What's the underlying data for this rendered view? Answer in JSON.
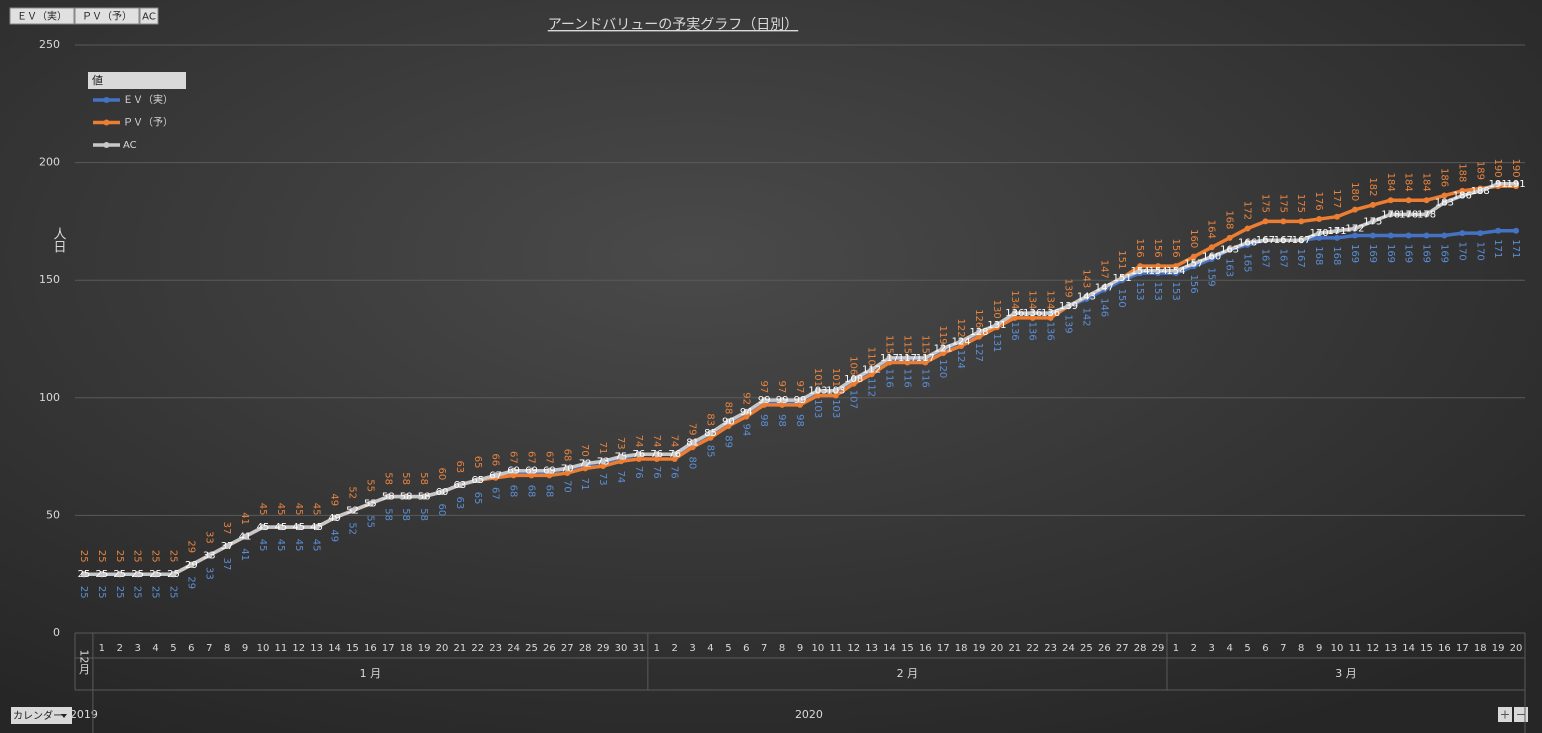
{
  "chart_data": {
    "type": "line",
    "title": "アーンドバリューの予実グラフ（日別）",
    "y_label": "人日",
    "legend_title": "値",
    "legend_position": "top-left",
    "filter_button": "カレンダー",
    "categories": [
      null,
      "1",
      "2",
      "3",
      "4",
      "5",
      "6",
      "7",
      "8",
      "9",
      "10",
      "11",
      "12",
      "13",
      "14",
      "15",
      "16",
      "17",
      "18",
      "19",
      "20",
      "21",
      "22",
      "23",
      "24",
      "25",
      "26",
      "27",
      "28",
      "29",
      "30",
      "31",
      "1",
      "2",
      "3",
      "4",
      "5",
      "6",
      "7",
      "8",
      "9",
      "10",
      "11",
      "12",
      "13",
      "14",
      "15",
      "16",
      "17",
      "18",
      "19",
      "20",
      "21",
      "22",
      "23",
      "24",
      "25",
      "26",
      "27",
      "28",
      "29",
      "1",
      "2",
      "3",
      "4",
      "5",
      "6",
      "7",
      "8",
      "9",
      "10",
      "11",
      "12",
      "13",
      "14",
      "15",
      "16",
      "17",
      "18",
      "19",
      "20"
    ],
    "months": [
      "12月",
      "1 月",
      "1 月",
      "1 月",
      "1 月",
      "1 月",
      "1 月",
      "1 月",
      "1 月",
      "1 月",
      "1 月",
      "1 月",
      "1 月",
      "1 月",
      "1 月",
      "1 月",
      "1 月",
      "1 月",
      "1 月",
      "1 月",
      "1 月",
      "1 月",
      "1 月",
      "1 月",
      "1 月",
      "1 月",
      "1 月",
      "1 月",
      "1 月",
      "1 月",
      "1 月",
      "1 月",
      "2 月",
      "2 月",
      "2 月",
      "2 月",
      "2 月",
      "2 月",
      "2 月",
      "2 月",
      "2 月",
      "2 月",
      "2 月",
      "2 月",
      "2 月",
      "2 月",
      "2 月",
      "2 月",
      "2 月",
      "2 月",
      "2 月",
      "2 月",
      "2 月",
      "2 月",
      "2 月",
      "2 月",
      "2 月",
      "2 月",
      "2 月",
      "2 月",
      "2 月",
      "3 月",
      "3 月",
      "3 月",
      "3 月",
      "3 月",
      "3 月",
      "3 月",
      "3 月",
      "3 月",
      "3 月",
      "3 月",
      "3 月",
      "3 月",
      "3 月",
      "3 月",
      "3 月",
      "3 月",
      "3 月",
      "3 月",
      "3 月"
    ],
    "years": [
      "2019",
      "2020",
      "2020",
      "2020",
      "2020",
      "2020",
      "2020",
      "2020",
      "2020",
      "2020",
      "2020",
      "2020",
      "2020",
      "2020",
      "2020",
      "2020",
      "2020",
      "2020",
      "2020",
      "2020",
      "2020",
      "2020",
      "2020",
      "2020",
      "2020",
      "2020",
      "2020",
      "2020",
      "2020",
      "2020",
      "2020",
      "2020",
      "2020",
      "2020",
      "2020",
      "2020",
      "2020",
      "2020",
      "2020",
      "2020",
      "2020",
      "2020",
      "2020",
      "2020",
      "2020",
      "2020",
      "2020",
      "2020",
      "2020",
      "2020",
      "2020",
      "2020",
      "2020",
      "2020",
      "2020",
      "2020",
      "2020",
      "2020",
      "2020",
      "2020",
      "2020",
      "2020",
      "2020",
      "2020",
      "2020",
      "2020",
      "2020",
      "2020",
      "2020",
      "2020",
      "2020",
      "2020",
      "2020",
      "2020",
      "2020",
      "2020",
      "2020",
      "2020",
      "2020",
      "2020",
      "2020"
    ],
    "series": [
      {
        "name": "ＥＶ（実）",
        "color": "#4472c4",
        "label_color": "#5b8fd6",
        "label_position": "below",
        "values": [
          25,
          25,
          25,
          25,
          25,
          25,
          29,
          33,
          37,
          41,
          45,
          45,
          45,
          45,
          49,
          52,
          55,
          58,
          58,
          58,
          60,
          63,
          65,
          67,
          68,
          68,
          68,
          70,
          71,
          73,
          74,
          76,
          76,
          76,
          80,
          85,
          89,
          94,
          98,
          98,
          98,
          103,
          103,
          107,
          112,
          116,
          116,
          116,
          120,
          124,
          127,
          131,
          136,
          136,
          136,
          139,
          142,
          146,
          150,
          153,
          153,
          153,
          156,
          159,
          163,
          165,
          167,
          167,
          167,
          168,
          168,
          169,
          169,
          169,
          169,
          169,
          169,
          170,
          170,
          171,
          171
        ]
      },
      {
        "name": "ＰＶ（予）",
        "color": "#ed7d31",
        "label_color": "#e8843f",
        "label_position": "above",
        "values": [
          25,
          25,
          25,
          25,
          25,
          25,
          29,
          33,
          37,
          41,
          45,
          45,
          45,
          45,
          49,
          52,
          55,
          58,
          58,
          58,
          60,
          63,
          65,
          66,
          67,
          67,
          67,
          68,
          70,
          71,
          73,
          74,
          74,
          74,
          79,
          83,
          88,
          92,
          97,
          97,
          97,
          101,
          101,
          106,
          110,
          115,
          115,
          115,
          119,
          122,
          126,
          130,
          134,
          134,
          134,
          139,
          143,
          147,
          151,
          156,
          156,
          156,
          160,
          164,
          168,
          172,
          175,
          175,
          175,
          176,
          177,
          180,
          182,
          184,
          184,
          184,
          186,
          188,
          189,
          190,
          190
        ]
      },
      {
        "name": "AC",
        "color": "#c8c8c8",
        "label_color": "#ffffff",
        "label_position": "center",
        "values": [
          25,
          25,
          25,
          25,
          25,
          25,
          29,
          33,
          37,
          41,
          45,
          45,
          45,
          45,
          49,
          52,
          55,
          58,
          58,
          58,
          60,
          63,
          65,
          67,
          69,
          69,
          69,
          70,
          72,
          73,
          75,
          76,
          76,
          76,
          81,
          85,
          90,
          94,
          99,
          99,
          99,
          103,
          103,
          108,
          112,
          117,
          117,
          117,
          121,
          124,
          128,
          131,
          136,
          136,
          136,
          139,
          143,
          147,
          151,
          154,
          154,
          154,
          157,
          160,
          163,
          166,
          167,
          167,
          167,
          170,
          171,
          172,
          175,
          178,
          178,
          178,
          183,
          186,
          188,
          191,
          191
        ]
      }
    ],
    "ylim": [
      0,
      250
    ],
    "yticks": [
      0,
      50,
      100,
      150,
      200,
      250
    ],
    "grid": true
  }
}
